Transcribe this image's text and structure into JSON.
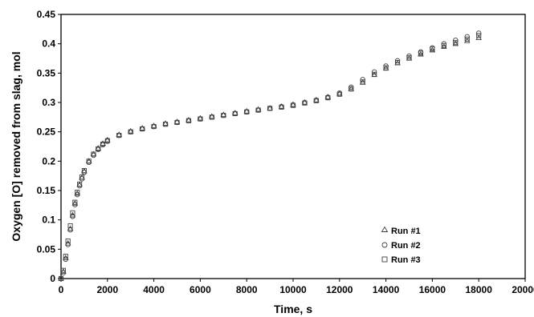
{
  "chart_data": {
    "type": "scatter",
    "xlabel": "Time, s",
    "ylabel": "Oxygen [O] removed from slag, mol",
    "xlim": [
      0,
      20000
    ],
    "ylim": [
      0,
      0.45
    ],
    "xticks": [
      0,
      2000,
      4000,
      6000,
      8000,
      10000,
      12000,
      14000,
      16000,
      18000,
      20000
    ],
    "yticks": [
      0,
      0.05,
      0.1,
      0.15,
      0.2,
      0.25,
      0.3,
      0.35,
      0.4,
      0.45
    ],
    "ytick_labels": [
      "0",
      "0.05",
      "0.1",
      "0.15",
      "0.2",
      "0.25",
      "0.3",
      "0.35",
      "0.4",
      "0.45"
    ],
    "grid": false,
    "legend_position": "right",
    "series": [
      {
        "name": "Run #1",
        "marker": "triangle",
        "points": [
          [
            0,
            0
          ],
          [
            100,
            0.012
          ],
          [
            200,
            0.035
          ],
          [
            300,
            0.06
          ],
          [
            400,
            0.085
          ],
          [
            500,
            0.108
          ],
          [
            600,
            0.128
          ],
          [
            700,
            0.145
          ],
          [
            800,
            0.16
          ],
          [
            900,
            0.172
          ],
          [
            1000,
            0.183
          ],
          [
            1200,
            0.2
          ],
          [
            1400,
            0.212
          ],
          [
            1600,
            0.222
          ],
          [
            1800,
            0.23
          ],
          [
            2000,
            0.236
          ],
          [
            2500,
            0.245
          ],
          [
            3000,
            0.251
          ],
          [
            3500,
            0.256
          ],
          [
            4000,
            0.26
          ],
          [
            4500,
            0.264
          ],
          [
            5000,
            0.267
          ],
          [
            5500,
            0.27
          ],
          [
            6000,
            0.273
          ],
          [
            6500,
            0.276
          ],
          [
            7000,
            0.279
          ],
          [
            7500,
            0.282
          ],
          [
            8000,
            0.285
          ],
          [
            8500,
            0.288
          ],
          [
            9000,
            0.29
          ],
          [
            9500,
            0.293
          ],
          [
            10000,
            0.296
          ],
          [
            10500,
            0.3
          ],
          [
            11000,
            0.304
          ],
          [
            11500,
            0.309
          ],
          [
            12000,
            0.315
          ],
          [
            12500,
            0.323
          ],
          [
            13000,
            0.334
          ],
          [
            13500,
            0.347
          ],
          [
            14000,
            0.358
          ],
          [
            14500,
            0.367
          ],
          [
            15000,
            0.375
          ],
          [
            15500,
            0.382
          ],
          [
            16000,
            0.389
          ],
          [
            16500,
            0.395
          ],
          [
            17000,
            0.4
          ],
          [
            17500,
            0.405
          ],
          [
            18000,
            0.41
          ]
        ]
      },
      {
        "name": "Run #2",
        "marker": "circle",
        "points": [
          [
            0,
            0
          ],
          [
            100,
            0.01
          ],
          [
            200,
            0.033
          ],
          [
            300,
            0.058
          ],
          [
            400,
            0.083
          ],
          [
            500,
            0.106
          ],
          [
            600,
            0.126
          ],
          [
            700,
            0.143
          ],
          [
            800,
            0.158
          ],
          [
            900,
            0.17
          ],
          [
            1000,
            0.181
          ],
          [
            1200,
            0.198
          ],
          [
            1400,
            0.21
          ],
          [
            1600,
            0.22
          ],
          [
            1800,
            0.228
          ],
          [
            2000,
            0.234
          ],
          [
            2500,
            0.244
          ],
          [
            3000,
            0.25
          ],
          [
            3500,
            0.255
          ],
          [
            4000,
            0.259
          ],
          [
            4500,
            0.263
          ],
          [
            5000,
            0.266
          ],
          [
            5500,
            0.269
          ],
          [
            6000,
            0.272
          ],
          [
            6500,
            0.275
          ],
          [
            7000,
            0.278
          ],
          [
            7500,
            0.281
          ],
          [
            8000,
            0.284
          ],
          [
            8500,
            0.287
          ],
          [
            9000,
            0.29
          ],
          [
            9500,
            0.293
          ],
          [
            10000,
            0.296
          ],
          [
            10500,
            0.3
          ],
          [
            11000,
            0.304
          ],
          [
            11500,
            0.309
          ],
          [
            12000,
            0.316
          ],
          [
            12500,
            0.326
          ],
          [
            13000,
            0.339
          ],
          [
            13500,
            0.352
          ],
          [
            14000,
            0.362
          ],
          [
            14500,
            0.371
          ],
          [
            15000,
            0.379
          ],
          [
            15500,
            0.386
          ],
          [
            16000,
            0.393
          ],
          [
            16500,
            0.4
          ],
          [
            17000,
            0.406
          ],
          [
            17500,
            0.412
          ],
          [
            18000,
            0.418
          ]
        ]
      },
      {
        "name": "Run #3",
        "marker": "square",
        "points": [
          [
            0,
            0
          ],
          [
            100,
            0.014
          ],
          [
            200,
            0.038
          ],
          [
            300,
            0.064
          ],
          [
            400,
            0.09
          ],
          [
            500,
            0.112
          ],
          [
            600,
            0.13
          ],
          [
            700,
            0.147
          ],
          [
            800,
            0.161
          ],
          [
            900,
            0.173
          ],
          [
            1000,
            0.184
          ],
          [
            1200,
            0.2
          ],
          [
            1400,
            0.212
          ],
          [
            1600,
            0.221
          ],
          [
            1800,
            0.229
          ],
          [
            2000,
            0.235
          ],
          [
            2500,
            0.244
          ],
          [
            3000,
            0.25
          ],
          [
            3500,
            0.255
          ],
          [
            4000,
            0.259
          ],
          [
            4500,
            0.263
          ],
          [
            5000,
            0.266
          ],
          [
            5500,
            0.269
          ],
          [
            6000,
            0.272
          ],
          [
            6500,
            0.275
          ],
          [
            7000,
            0.278
          ],
          [
            7500,
            0.281
          ],
          [
            8000,
            0.284
          ],
          [
            8500,
            0.287
          ],
          [
            9000,
            0.29
          ],
          [
            9500,
            0.292
          ],
          [
            10000,
            0.295
          ],
          [
            10500,
            0.299
          ],
          [
            11000,
            0.303
          ],
          [
            11500,
            0.308
          ],
          [
            12000,
            0.314
          ],
          [
            12500,
            0.323
          ],
          [
            13000,
            0.335
          ],
          [
            13500,
            0.348
          ],
          [
            14000,
            0.359
          ],
          [
            14500,
            0.368
          ],
          [
            15000,
            0.376
          ],
          [
            15500,
            0.384
          ],
          [
            16000,
            0.391
          ],
          [
            16500,
            0.397
          ],
          [
            17000,
            0.402
          ],
          [
            17500,
            0.408
          ],
          [
            18000,
            0.414
          ]
        ]
      }
    ]
  }
}
